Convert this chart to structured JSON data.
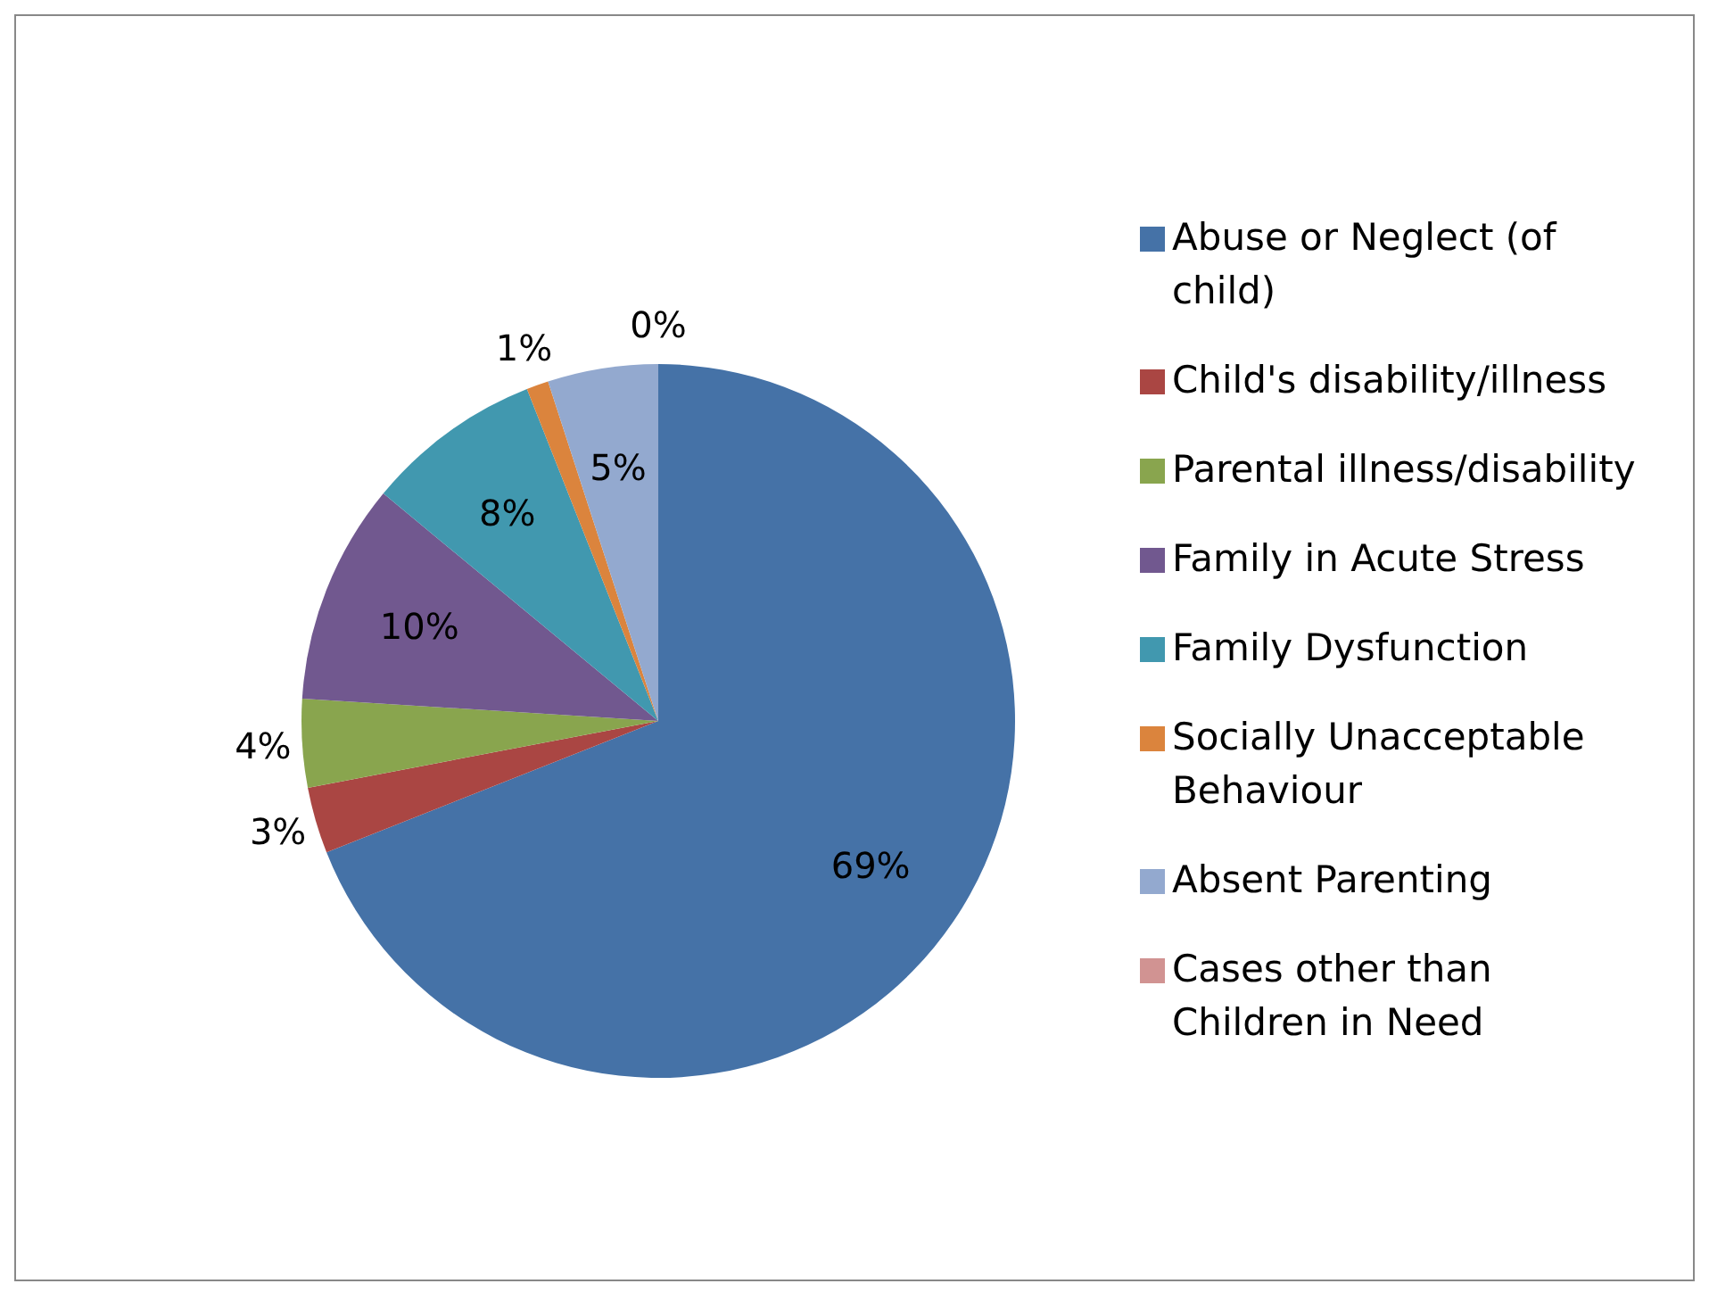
{
  "chart_data": {
    "type": "pie",
    "categories": [
      "Abuse or Neglect (of child)",
      "Child's disability/illness",
      "Parental illness/disability",
      "Family in Acute Stress",
      "Family Dysfunction",
      "Socially Unacceptable Behaviour",
      "Absent Parenting",
      "Cases other than Children in Need"
    ],
    "values": [
      69,
      3,
      4,
      10,
      8,
      1,
      5,
      0
    ],
    "colors": [
      "#4572a7",
      "#aa4643",
      "#89a54e",
      "#71588f",
      "#4198af",
      "#db843d",
      "#93a9cf",
      "#d19392"
    ],
    "value_labels": [
      "69%",
      "3%",
      "4%",
      "10%",
      "8%",
      "1%",
      "5%",
      "0%"
    ],
    "legend": "right"
  }
}
